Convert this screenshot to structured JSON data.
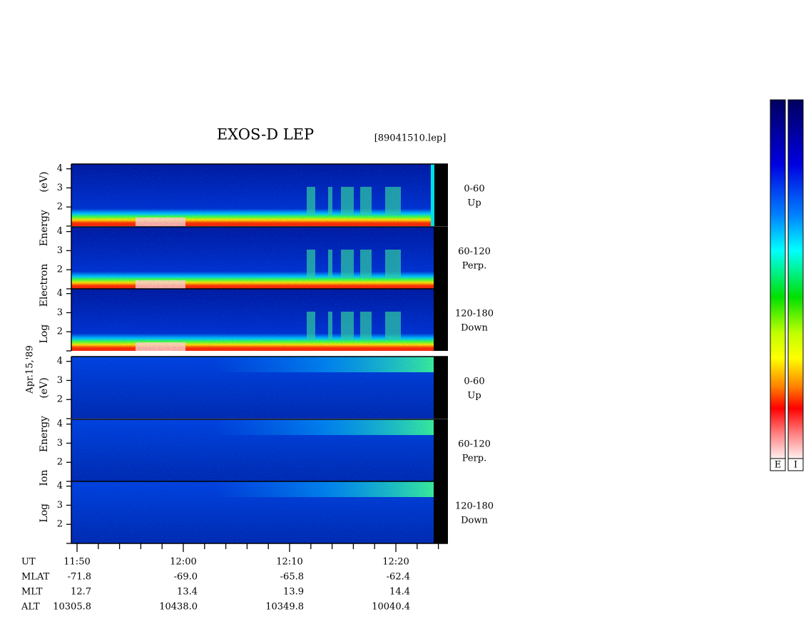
{
  "title": "EXOS-D LEP",
  "file": "[89041510.lep]",
  "date": "Apr.15,'89",
  "ylim": [
    1,
    4.25
  ],
  "yticks": [
    2,
    3,
    4
  ],
  "electron": {
    "axis_label": "Log Electron Energy (eV)",
    "panels": [
      {
        "range": "0-60",
        "direction": "Up"
      },
      {
        "range": "60-120",
        "direction": "Perp."
      },
      {
        "range": "120-180",
        "direction": "Down"
      }
    ]
  },
  "ion": {
    "axis_label": "Log Ion Energy (eV)",
    "panels": [
      {
        "range": "0-60",
        "direction": "Up"
      },
      {
        "range": "60-120",
        "direction": "Perp."
      },
      {
        "range": "120-180",
        "direction": "Down"
      }
    ]
  },
  "orbit": {
    "rows": [
      {
        "name": "UT",
        "values": [
          "11:50",
          "12:00",
          "12:10",
          "12:20"
        ]
      },
      {
        "name": "MLAT",
        "values": [
          "-71.8",
          "-69.0",
          "-65.8",
          "-62.4"
        ]
      },
      {
        "name": "MLT",
        "values": [
          "12.7",
          "13.4",
          "13.9",
          "14.4"
        ]
      },
      {
        "name": "ALT",
        "values": [
          "10305.8",
          "10438.0",
          "10349.8",
          "10040.4"
        ]
      }
    ]
  },
  "colorbars": [
    "E",
    "I"
  ]
}
